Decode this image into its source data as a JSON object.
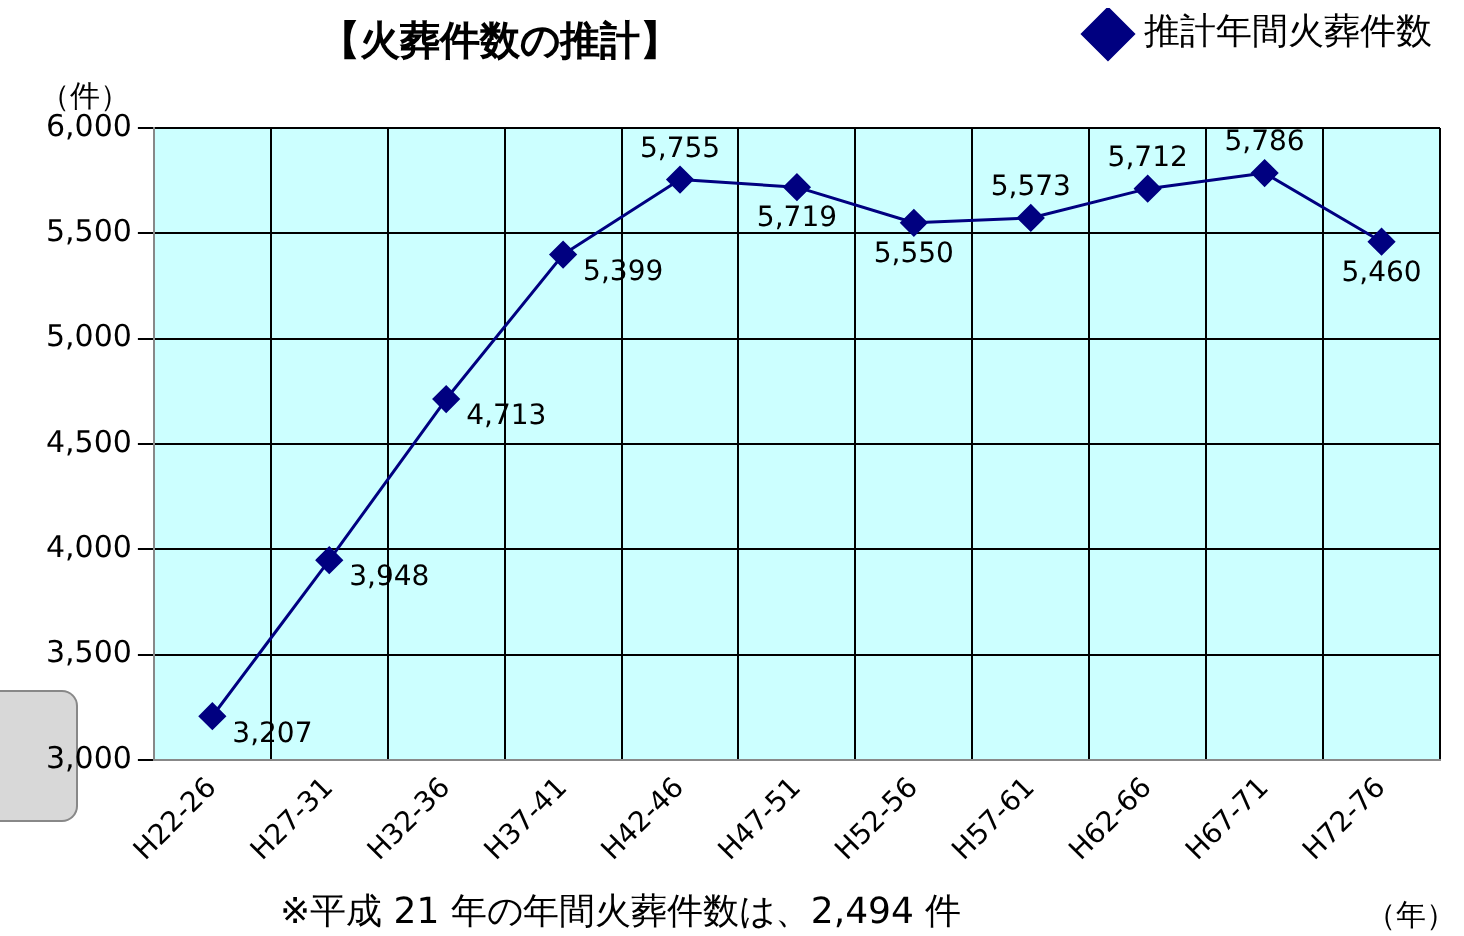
{
  "chart_data": {
    "type": "line",
    "title": "【火葬件数の推計】",
    "ylabel": "（件）",
    "xlabel": "（年）",
    "categories": [
      "H22-26",
      "H27-31",
      "H32-36",
      "H37-41",
      "H42-46",
      "H47-51",
      "H52-56",
      "H57-61",
      "H62-66",
      "H67-71",
      "H72-76"
    ],
    "series": [
      {
        "name": "推計年間火葬件数",
        "color": "#000080",
        "values": [
          3207,
          3948,
          4713,
          5399,
          5755,
          5719,
          5550,
          5573,
          5712,
          5786,
          5460
        ],
        "value_labels": [
          "3,207",
          "3,948",
          "4,713",
          "5,399",
          "5,755",
          "5,719",
          "5,550",
          "5,573",
          "5,712",
          "5,786",
          "5,460"
        ]
      }
    ],
    "ylim": [
      3000,
      6000
    ],
    "yticks": [
      {
        "value": 3000,
        "label": "3,000"
      },
      {
        "value": 3500,
        "label": "3,500"
      },
      {
        "value": 4000,
        "label": "4,000"
      },
      {
        "value": 4500,
        "label": "4,500"
      },
      {
        "value": 5000,
        "label": "5,000"
      },
      {
        "value": 5500,
        "label": "5,500"
      },
      {
        "value": 6000,
        "label": "6,000"
      }
    ],
    "grid": true,
    "legend": "top right",
    "marker": "diamond",
    "line_style": "solid",
    "annotations": [
      "※平成 21 年の年間火葬件数は、2,494 件"
    ]
  }
}
